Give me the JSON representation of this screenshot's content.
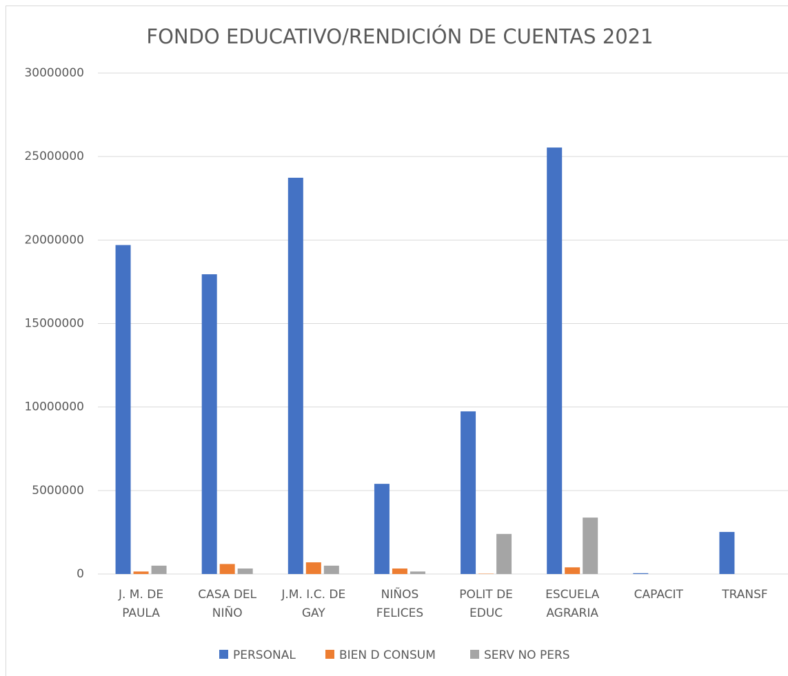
{
  "chart_data": {
    "type": "bar",
    "title": "FONDO EDUCATIVO/RENDICIÓN DE CUENTAS 2021",
    "categories": [
      "J. M. DE PAULA",
      "CASA DEL NIÑO",
      "J.M. I.C. DE GAY",
      "NIÑOS FELICES",
      "POLIT DE EDUC",
      "ESCUELA AGRARIA",
      "CAPACIT",
      "TRANSF"
    ],
    "series": [
      {
        "name": "PERSONAL",
        "color": "#4472c4",
        "values": [
          19700000,
          17950000,
          23730000,
          5400000,
          9740000,
          25540000,
          50000,
          2520000
        ]
      },
      {
        "name": "BIEN D CONSUM",
        "color": "#ed7d31",
        "values": [
          150000,
          600000,
          700000,
          330000,
          20000,
          400000,
          0,
          0
        ]
      },
      {
        "name": "SERV NO PERS",
        "color": "#a5a5a5",
        "values": [
          500000,
          330000,
          500000,
          150000,
          2400000,
          3380000,
          0,
          0
        ]
      }
    ],
    "ylim": [
      0,
      30000000
    ],
    "yticks": [
      0,
      5000000,
      10000000,
      15000000,
      20000000,
      25000000,
      30000000
    ],
    "grid": true,
    "legend": "bottom"
  }
}
